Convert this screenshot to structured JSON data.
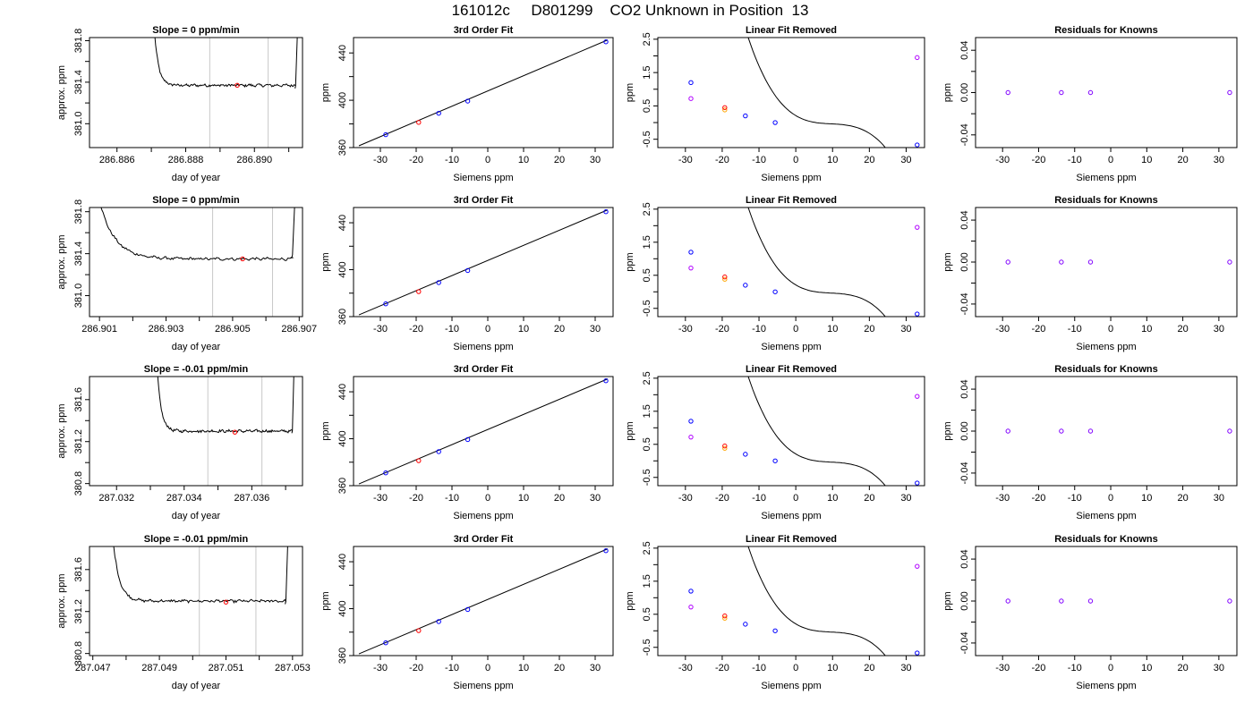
{
  "figure": {
    "title": "161012c     D801299    CO2 Unknown in Position  13"
  },
  "colors": {
    "line": "#000000",
    "time_marker": "#c8c8c8",
    "known_point": "#0000ff",
    "unknown_point": "#ff0000",
    "unknown_point_alt": "#ffa500",
    "residual_point": "#8000ff",
    "linear_removed_point": "#b000ff"
  },
  "chart_data": [
    {
      "type": "line",
      "row": 1,
      "col": 1,
      "title": "Slope =  0  ppm/min",
      "xlabel": "day of year",
      "ylabel": "approx. ppm",
      "xlim": [
        286.8852,
        286.8914
      ],
      "ylim": [
        380.77,
        381.83
      ],
      "xticks": [
        286.886,
        286.887,
        286.888,
        286.889,
        286.89,
        286.891
      ],
      "xticklabels": [
        "286.886",
        "",
        "286.888",
        "",
        "286.890",
        ""
      ],
      "yticks": [
        381.0,
        381.2,
        381.4,
        381.6,
        381.8
      ],
      "yticklabels": [
        "381.0",
        "",
        "381.4",
        "",
        "381.8"
      ],
      "vlines": [
        286.8887,
        286.8904
      ],
      "trace": {
        "start": 286.8871,
        "end": 286.8912,
        "plateau_start": 286.8876,
        "level": 381.37,
        "spike_start": 381.85,
        "spike_end": 381.85,
        "dip_end": 381.34
      },
      "marker": {
        "x": 286.8895,
        "y": 381.37
      }
    },
    {
      "type": "scatter",
      "row": 1,
      "col": 2,
      "title": "3rd Order Fit",
      "xlabel": "Siemens ppm",
      "ylabel": "ppm",
      "xlim": [
        -37.5,
        35
      ],
      "ylim": [
        360,
        453
      ],
      "xticks": [
        -30,
        -20,
        -10,
        0,
        10,
        20,
        30
      ],
      "yticks": [
        360,
        380,
        400,
        420,
        440
      ],
      "yticklabels": [
        "360",
        "",
        "400",
        "",
        "440"
      ],
      "fit_line": [
        [
          -36,
          361.5
        ],
        [
          33.5,
          451
        ]
      ],
      "knowns": [
        [
          -28.5,
          370.9
        ],
        [
          -13.7,
          389.0
        ],
        [
          -5.6,
          399.3
        ],
        [
          33.0,
          449.4
        ]
      ],
      "unknown": [
        -19.3,
        381.3
      ]
    },
    {
      "type": "scatter",
      "row": 1,
      "col": 3,
      "title": "Linear Fit Removed",
      "xlabel": "Siemens ppm",
      "ylabel": "ppm",
      "xlim": [
        -37.5,
        35
      ],
      "ylim": [
        -0.75,
        2.55
      ],
      "xticks": [
        -30,
        -20,
        -10,
        0,
        10,
        20,
        30
      ],
      "yticks": [
        -0.5,
        0,
        0.5,
        1.0,
        1.5,
        2.0,
        2.5
      ],
      "yticklabels": [
        "-0.5",
        "",
        "0.5",
        "",
        "1.5",
        "",
        "2.5"
      ],
      "curve_x": [
        -36,
        33.5
      ],
      "knowns": [
        [
          -28.5,
          1.2
        ],
        [
          -13.7,
          0.2
        ],
        [
          -5.6,
          0.0
        ],
        [
          33.0,
          -0.67
        ]
      ],
      "unknown": [
        -19.3,
        0.45
      ],
      "unknown_alt": [
        -19.3,
        0.38
      ],
      "linear_removed": [
        [
          -28.5,
          0.72
        ],
        [
          33.0,
          1.95
        ]
      ]
    },
    {
      "type": "scatter",
      "row": 1,
      "col": 4,
      "title": "Residuals for Knowns",
      "xlabel": "Siemens ppm",
      "ylabel": "ppm",
      "xlim": [
        -37.5,
        35
      ],
      "ylim": [
        -0.052,
        0.052
      ],
      "xticks": [
        -30,
        -20,
        -10,
        0,
        10,
        20,
        30
      ],
      "yticks": [
        -0.04,
        -0.02,
        0.0,
        0.02,
        0.04
      ],
      "yticklabels": [
        "-0.04",
        "",
        "0.00",
        "",
        "0.04"
      ],
      "residuals": [
        [
          -28.5,
          0.0
        ],
        [
          -13.7,
          0.0
        ],
        [
          -5.6,
          0.0
        ],
        [
          33.0,
          0.0
        ]
      ]
    },
    {
      "type": "line",
      "row": 2,
      "col": 1,
      "title": "Slope =  0  ppm/min",
      "xlabel": "day of year",
      "ylabel": "approx. ppm",
      "xlim": [
        286.9007,
        286.9071
      ],
      "ylim": [
        380.8,
        381.84
      ],
      "xticks": [
        286.901,
        286.902,
        286.903,
        286.904,
        286.905,
        286.906,
        286.907
      ],
      "xticklabels": [
        "286.901",
        "",
        "286.903",
        "",
        "286.905",
        "",
        "286.907"
      ],
      "yticks": [
        381.0,
        381.2,
        381.4,
        381.6,
        381.8
      ],
      "yticklabels": [
        "381.0",
        "",
        "381.4",
        "",
        "381.8"
      ],
      "vlines": [
        286.9044,
        286.9062
      ],
      "trace": {
        "start": 286.901,
        "end": 286.9068,
        "plateau_start": 286.9029,
        "level": 381.35,
        "spike_start": 381.9,
        "spike_end": 381.9,
        "dip_end": 381.36
      },
      "marker": {
        "x": 286.9053,
        "y": 381.35
      }
    },
    {
      "type": "scatter",
      "row": 2,
      "col": 2,
      "title": "3rd Order Fit",
      "xlabel": "Siemens ppm",
      "ylabel": "ppm",
      "xlim": [
        -37.5,
        35
      ],
      "ylim": [
        360,
        453
      ],
      "xticks": [
        -30,
        -20,
        -10,
        0,
        10,
        20,
        30
      ],
      "yticks": [
        360,
        380,
        400,
        420,
        440
      ],
      "yticklabels": [
        "360",
        "",
        "400",
        "",
        "440"
      ],
      "fit_line": [
        [
          -36,
          361.5
        ],
        [
          33.5,
          451
        ]
      ],
      "knowns": [
        [
          -28.5,
          370.9
        ],
        [
          -13.7,
          389.0
        ],
        [
          -5.6,
          399.3
        ],
        [
          33.0,
          449.4
        ]
      ],
      "unknown": [
        -19.3,
        381.3
      ]
    },
    {
      "type": "scatter",
      "row": 2,
      "col": 3,
      "title": "Linear Fit Removed",
      "xlabel": "Siemens ppm",
      "ylabel": "ppm",
      "xlim": [
        -37.5,
        35
      ],
      "ylim": [
        -0.75,
        2.55
      ],
      "xticks": [
        -30,
        -20,
        -10,
        0,
        10,
        20,
        30
      ],
      "yticks": [
        -0.5,
        0,
        0.5,
        1.0,
        1.5,
        2.0,
        2.5
      ],
      "yticklabels": [
        "-0.5",
        "",
        "0.5",
        "",
        "1.5",
        "",
        "2.5"
      ],
      "curve_x": [
        -36,
        33.5
      ],
      "knowns": [
        [
          -28.5,
          1.2
        ],
        [
          -13.7,
          0.2
        ],
        [
          -5.6,
          0.0
        ],
        [
          33.0,
          -0.67
        ]
      ],
      "unknown": [
        -19.3,
        0.45
      ],
      "unknown_alt": [
        -19.3,
        0.38
      ],
      "linear_removed": [
        [
          -28.5,
          0.72
        ],
        [
          33.0,
          1.95
        ]
      ]
    },
    {
      "type": "scatter",
      "row": 2,
      "col": 4,
      "title": "Residuals for Knowns",
      "xlabel": "Siemens ppm",
      "ylabel": "ppm",
      "xlim": [
        -37.5,
        35
      ],
      "ylim": [
        -0.052,
        0.052
      ],
      "xticks": [
        -30,
        -20,
        -10,
        0,
        10,
        20,
        30
      ],
      "yticks": [
        -0.04,
        -0.02,
        0.0,
        0.02,
        0.04
      ],
      "yticklabels": [
        "-0.04",
        "",
        "0.00",
        "",
        "0.04"
      ],
      "residuals": [
        [
          -28.5,
          0.0
        ],
        [
          -13.7,
          0.0
        ],
        [
          -5.6,
          0.0
        ],
        [
          33.0,
          0.0
        ]
      ]
    },
    {
      "type": "line",
      "row": 3,
      "col": 1,
      "title": "Slope =  -0.01  ppm/min",
      "xlabel": "day of year",
      "ylabel": "approx. ppm",
      "xlim": [
        287.0312,
        287.0375
      ],
      "ylim": [
        380.78,
        381.82
      ],
      "xticks": [
        287.032,
        287.033,
        287.034,
        287.035,
        287.036,
        287.037
      ],
      "xticklabels": [
        "287.032",
        "",
        "287.034",
        "",
        "287.036",
        ""
      ],
      "yticks": [
        380.8,
        381.0,
        381.2,
        381.4,
        381.6
      ],
      "yticklabels": [
        "380.8",
        "",
        "381.2",
        "",
        "381.6"
      ],
      "vlines": [
        287.0347,
        287.0363
      ],
      "trace": {
        "start": 287.0332,
        "end": 287.0372,
        "plateau_start": 287.0337,
        "level": 381.3,
        "spike_start": 381.9,
        "spike_end": 381.9,
        "dip_end": 381.28
      },
      "marker": {
        "x": 287.0355,
        "y": 381.29
      }
    },
    {
      "type": "scatter",
      "row": 3,
      "col": 2,
      "title": "3rd Order Fit",
      "xlabel": "Siemens ppm",
      "ylabel": "ppm",
      "xlim": [
        -37.5,
        35
      ],
      "ylim": [
        360,
        453
      ],
      "xticks": [
        -30,
        -20,
        -10,
        0,
        10,
        20,
        30
      ],
      "yticks": [
        360,
        380,
        400,
        420,
        440
      ],
      "yticklabels": [
        "360",
        "",
        "400",
        "",
        "440"
      ],
      "fit_line": [
        [
          -36,
          361.5
        ],
        [
          33.5,
          451
        ]
      ],
      "knowns": [
        [
          -28.5,
          370.9
        ],
        [
          -13.7,
          389.0
        ],
        [
          -5.6,
          399.3
        ],
        [
          33.0,
          449.4
        ]
      ],
      "unknown": [
        -19.3,
        381.3
      ]
    },
    {
      "type": "scatter",
      "row": 3,
      "col": 3,
      "title": "Linear Fit Removed",
      "xlabel": "Siemens ppm",
      "ylabel": "ppm",
      "xlim": [
        -37.5,
        35
      ],
      "ylim": [
        -0.75,
        2.55
      ],
      "xticks": [
        -30,
        -20,
        -10,
        0,
        10,
        20,
        30
      ],
      "yticks": [
        -0.5,
        0,
        0.5,
        1.0,
        1.5,
        2.0,
        2.5
      ],
      "yticklabels": [
        "-0.5",
        "",
        "0.5",
        "",
        "1.5",
        "",
        "2.5"
      ],
      "curve_x": [
        -36,
        33.5
      ],
      "knowns": [
        [
          -28.5,
          1.2
        ],
        [
          -13.7,
          0.2
        ],
        [
          -5.6,
          0.0
        ],
        [
          33.0,
          -0.67
        ]
      ],
      "unknown": [
        -19.3,
        0.45
      ],
      "unknown_alt": [
        -19.3,
        0.38
      ],
      "linear_removed": [
        [
          -28.5,
          0.72
        ],
        [
          33.0,
          1.95
        ]
      ]
    },
    {
      "type": "scatter",
      "row": 3,
      "col": 4,
      "title": "Residuals for Knowns",
      "xlabel": "Siemens ppm",
      "ylabel": "ppm",
      "xlim": [
        -37.5,
        35
      ],
      "ylim": [
        -0.052,
        0.052
      ],
      "xticks": [
        -30,
        -20,
        -10,
        0,
        10,
        20,
        30
      ],
      "yticks": [
        -0.04,
        -0.02,
        0.0,
        0.02,
        0.04
      ],
      "yticklabels": [
        "-0.04",
        "",
        "0.00",
        "",
        "0.04"
      ],
      "residuals": [
        [
          -28.5,
          0.0
        ],
        [
          -13.7,
          0.0
        ],
        [
          -5.6,
          0.0
        ],
        [
          33.0,
          0.0
        ]
      ]
    },
    {
      "type": "line",
      "row": 4,
      "col": 1,
      "title": "Slope =  -0.01  ppm/min",
      "xlabel": "day of year",
      "ylabel": "approx. ppm",
      "xlim": [
        287.0469,
        287.0533
      ],
      "ylim": [
        380.78,
        381.82
      ],
      "xticks": [
        287.047,
        287.048,
        287.049,
        287.05,
        287.051,
        287.052,
        287.053
      ],
      "xticklabels": [
        "287.047",
        "",
        "287.049",
        "",
        "287.051",
        "",
        "287.053"
      ],
      "yticks": [
        380.8,
        381.0,
        381.2,
        381.4,
        381.6
      ],
      "yticklabels": [
        "380.8",
        "",
        "381.2",
        "",
        "381.6"
      ],
      "vlines": [
        287.0502,
        287.0519
      ],
      "trace": {
        "start": 287.0476,
        "end": 287.0528,
        "plateau_start": 287.0484,
        "level": 381.3,
        "spike_start": 381.9,
        "spike_end": 381.9,
        "dip_end": 381.27
      },
      "marker": {
        "x": 287.051,
        "y": 381.29
      }
    },
    {
      "type": "scatter",
      "row": 4,
      "col": 2,
      "title": "3rd Order Fit",
      "xlabel": "Siemens ppm",
      "ylabel": "ppm",
      "xlim": [
        -37.5,
        35
      ],
      "ylim": [
        360,
        453
      ],
      "xticks": [
        -30,
        -20,
        -10,
        0,
        10,
        20,
        30
      ],
      "yticks": [
        360,
        380,
        400,
        420,
        440
      ],
      "yticklabels": [
        "360",
        "",
        "400",
        "",
        "440"
      ],
      "fit_line": [
        [
          -36,
          361.5
        ],
        [
          33.5,
          451
        ]
      ],
      "knowns": [
        [
          -28.5,
          370.9
        ],
        [
          -13.7,
          389.0
        ],
        [
          -5.6,
          399.3
        ],
        [
          33.0,
          449.4
        ]
      ],
      "unknown": [
        -19.3,
        381.3
      ]
    },
    {
      "type": "scatter",
      "row": 4,
      "col": 3,
      "title": "Linear Fit Removed",
      "xlabel": "Siemens ppm",
      "ylabel": "ppm",
      "xlim": [
        -37.5,
        35
      ],
      "ylim": [
        -0.75,
        2.55
      ],
      "xticks": [
        -30,
        -20,
        -10,
        0,
        10,
        20,
        30
      ],
      "yticks": [
        -0.5,
        0,
        0.5,
        1.0,
        1.5,
        2.0,
        2.5
      ],
      "yticklabels": [
        "-0.5",
        "",
        "0.5",
        "",
        "1.5",
        "",
        "2.5"
      ],
      "curve_x": [
        -36,
        33.5
      ],
      "knowns": [
        [
          -28.5,
          1.2
        ],
        [
          -13.7,
          0.2
        ],
        [
          -5.6,
          0.0
        ],
        [
          33.0,
          -0.67
        ]
      ],
      "unknown": [
        -19.3,
        0.45
      ],
      "unknown_alt": [
        -19.3,
        0.38
      ],
      "linear_removed": [
        [
          -28.5,
          0.72
        ],
        [
          33.0,
          1.95
        ]
      ]
    },
    {
      "type": "scatter",
      "row": 4,
      "col": 4,
      "title": "Residuals for Knowns",
      "xlabel": "Siemens ppm",
      "ylabel": "ppm",
      "xlim": [
        -37.5,
        35
      ],
      "ylim": [
        -0.052,
        0.052
      ],
      "xticks": [
        -30,
        -20,
        -10,
        0,
        10,
        20,
        30
      ],
      "yticks": [
        -0.04,
        -0.02,
        0.0,
        0.02,
        0.04
      ],
      "yticklabels": [
        "-0.04",
        "",
        "0.00",
        "",
        "0.04"
      ],
      "residuals": [
        [
          -28.5,
          0.0
        ],
        [
          -13.7,
          0.0
        ],
        [
          -5.6,
          0.0
        ],
        [
          33.0,
          0.0
        ]
      ]
    }
  ]
}
